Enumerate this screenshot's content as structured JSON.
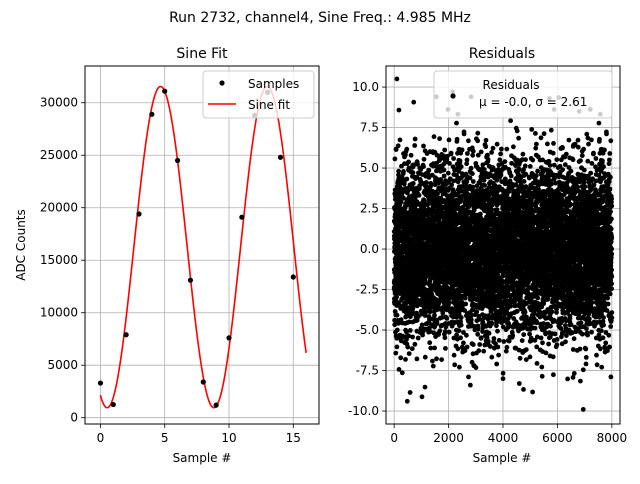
{
  "suptitle": "Run 2732, channel4, Sine Freq.: 4.985 MHz",
  "chart_data": [
    {
      "type": "line",
      "title": "Sine Fit",
      "xlabel": "Sample #",
      "ylabel": "ADC Counts",
      "xlim": [
        -1.2,
        17.0
      ],
      "ylim": [
        -600,
        33500
      ],
      "xticks": [
        0,
        5,
        10,
        15
      ],
      "yticks": [
        0,
        5000,
        10000,
        15000,
        20000,
        25000,
        30000
      ],
      "grid": true,
      "legend_position": "top-right",
      "legend": [
        "Samples",
        "Sine fit"
      ],
      "series": [
        {
          "name": "Samples",
          "kind": "scatter",
          "color": "#000000",
          "x": [
            0,
            1,
            2,
            3,
            4,
            5,
            6,
            7,
            8,
            9,
            10,
            11,
            12,
            13,
            14,
            15
          ],
          "y": [
            3300,
            1250,
            7900,
            19400,
            28900,
            31100,
            24500,
            13100,
            3400,
            1200,
            7600,
            19100,
            28800,
            31000,
            24800,
            13400
          ]
        },
        {
          "name": "Sine fit",
          "kind": "line",
          "color": "#ff0000",
          "function": {
            "offset": 16250,
            "amplitude": 15300,
            "period": 8.3,
            "phase_zero_x": 2.6
          },
          "x_range": [
            0,
            16
          ]
        }
      ]
    },
    {
      "type": "scatter",
      "title": "Residuals",
      "xlabel": "Sample #",
      "ylabel": "",
      "xlim": [
        -300,
        8300
      ],
      "ylim": [
        -10.8,
        11.3
      ],
      "xticks": [
        0,
        2000,
        4000,
        6000,
        8000
      ],
      "yticks": [
        -10.0,
        -7.5,
        -5.0,
        -2.5,
        0.0,
        2.5,
        5.0,
        7.5,
        10.0
      ],
      "grid": true,
      "legend_position": "top-right",
      "legend": [
        "Residuals",
        "μ = -0.0, σ = 2.61"
      ],
      "series": [
        {
          "name": "Residuals",
          "color": "#000000",
          "count": 8000,
          "mean": 0.0,
          "std": 2.61,
          "seed": 2732,
          "extremes": [
            [
              100,
              10.5
            ],
            [
              6950,
              -9.9
            ],
            [
              2800,
              -8.4
            ],
            [
              4600,
              -8.3
            ],
            [
              4000,
              -8.0
            ],
            [
              2150,
              9.7
            ],
            [
              6800,
              8.5
            ]
          ]
        }
      ]
    }
  ]
}
